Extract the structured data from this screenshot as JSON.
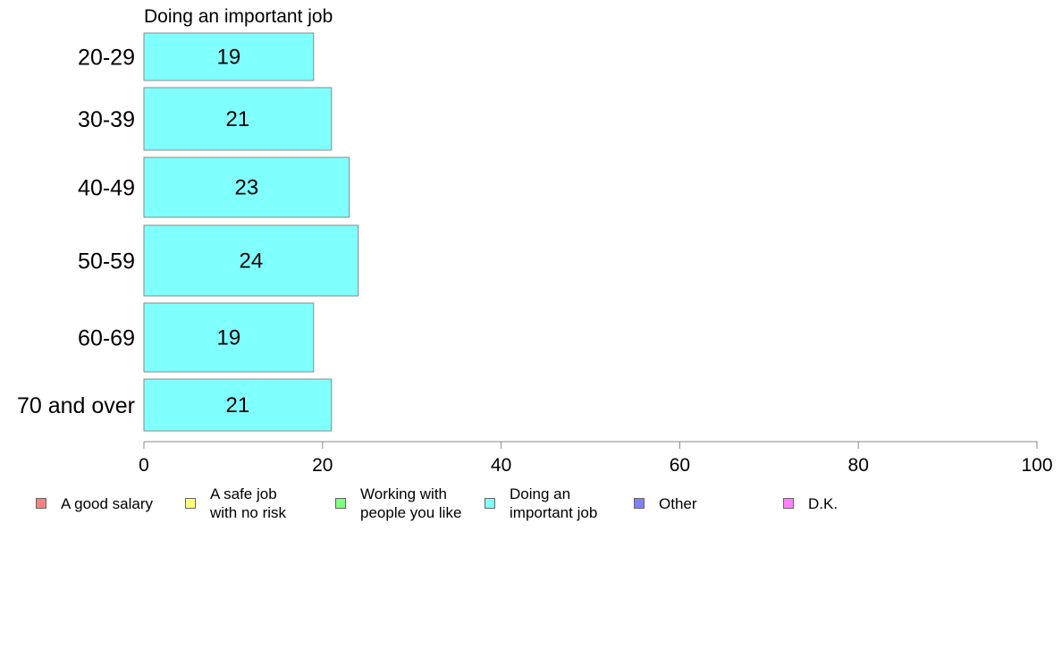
{
  "chart_data": {
    "type": "bar",
    "orientation": "horizontal",
    "title": "Doing an important job",
    "categories": [
      "20-29",
      "30-39",
      "40-49",
      "50-59",
      "60-69",
      "70 and over"
    ],
    "series": [
      {
        "name": "Doing an important job",
        "values": [
          19,
          21,
          23,
          24,
          19,
          21
        ],
        "color": "#80ffff"
      }
    ],
    "xlim": [
      0,
      100
    ],
    "xticks": [
      "0",
      "20",
      "40",
      "60",
      "80",
      "100"
    ],
    "grid": false,
    "legend_position": "bottom"
  },
  "legend": [
    {
      "label": "A good salary",
      "color": "#ff8080"
    },
    {
      "label": "A safe job\nwith no risk",
      "color": "#ffff80"
    },
    {
      "label": "Working with\npeople you like",
      "color": "#80ff80"
    },
    {
      "label": "Doing an\nimportant job",
      "color": "#80ffff"
    },
    {
      "label": "Other",
      "color": "#8080ff"
    },
    {
      "label": "D.K.",
      "color": "#ff80ff"
    }
  ]
}
